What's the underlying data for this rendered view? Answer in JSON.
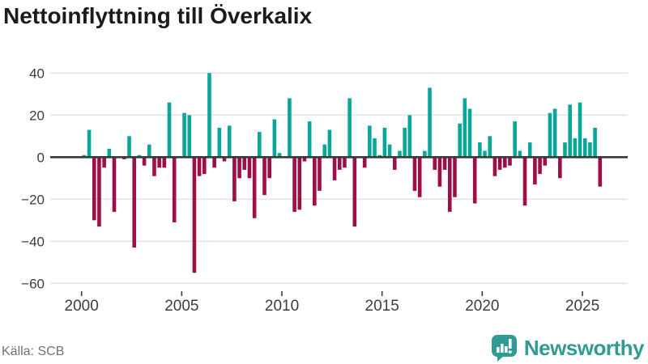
{
  "title": "Nettoinflyttning till Överkalix",
  "footer": {
    "source": "Källa: SCB",
    "brand": "Newsworthy"
  },
  "chart_data": {
    "type": "bar",
    "title": "Nettoinflyttning till Överkalix",
    "frequency": "quarterly",
    "x_start": {
      "year": 2000,
      "quarter": 1
    },
    "x_end": {
      "year": 2025,
      "quarter": 4
    },
    "series": [
      {
        "name": "Nettoinflyttning",
        "values": [
          1,
          13,
          -30,
          -33,
          -5,
          4,
          -26,
          0,
          -1,
          10,
          -43,
          1,
          -4,
          6,
          -9,
          -5,
          -5,
          26,
          -31,
          0,
          21,
          20,
          -55,
          -9,
          -8,
          40,
          -5,
          14,
          -2,
          15,
          -21,
          -10,
          -6,
          -10,
          -29,
          12,
          -18,
          -10,
          18,
          2,
          0,
          28,
          -26,
          -25,
          -2,
          17,
          -23,
          -16,
          6,
          13,
          -11,
          -6,
          -5,
          28,
          -33,
          0,
          -5,
          15,
          9,
          1,
          14,
          6,
          -6,
          3,
          14,
          20,
          -16,
          -19,
          3,
          33,
          -6,
          -14,
          -6,
          -26,
          -19,
          16,
          28,
          23,
          -22,
          7,
          3,
          10,
          -9,
          -6,
          -5,
          -4,
          17,
          3,
          -23,
          7,
          -13,
          -8,
          -4,
          21,
          23,
          -10,
          7,
          25,
          9,
          26,
          9,
          7,
          14,
          -14
        ]
      }
    ],
    "year_ticks": [
      2000,
      2005,
      2010,
      2015,
      2020,
      2025
    ],
    "yticks": [
      40,
      20,
      0,
      -20,
      -40,
      -60
    ],
    "ylim": [
      -60,
      40
    ],
    "grid": true,
    "legend": false,
    "positive_color": "#0ba69a",
    "negative_color": "#9e0e47",
    "grid_color": "#e4e4e4",
    "zero_line_color": "#3a3a3a",
    "axis_text_color": "#3c3c3c"
  }
}
